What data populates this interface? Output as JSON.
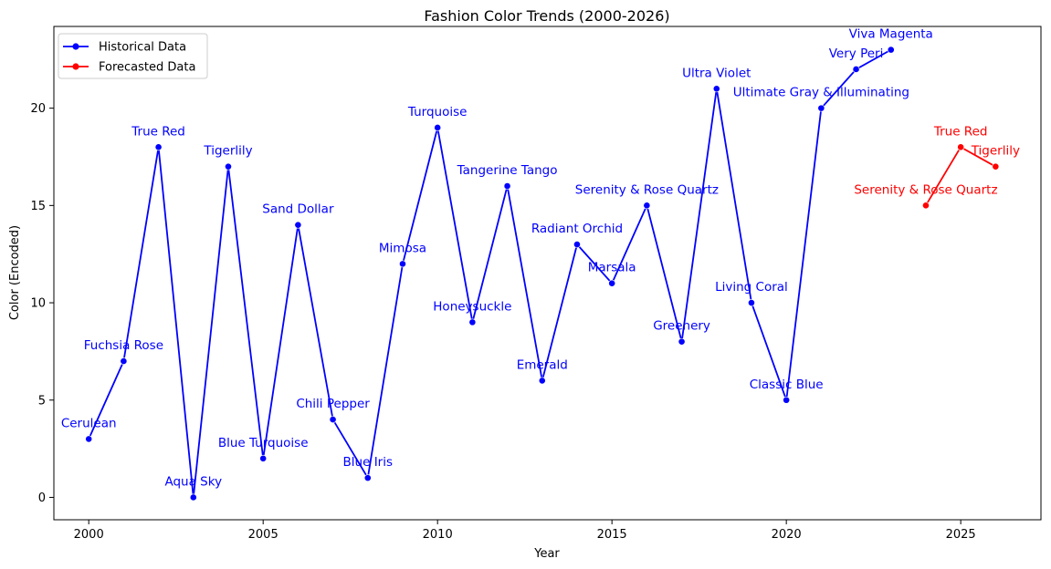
{
  "chart_data": {
    "type": "line",
    "title": "Fashion Color Trends (2000-2026)",
    "xlabel": "Year",
    "ylabel": "Color (Encoded)",
    "xlim": [
      1999,
      2027.3
    ],
    "ylim": [
      -1.15,
      24.2
    ],
    "xticks": [
      2000,
      2005,
      2010,
      2015,
      2020,
      2025
    ],
    "yticks": [
      0,
      5,
      10,
      15,
      20
    ],
    "grid": false,
    "legend": "top-left",
    "series": [
      {
        "name": "Historical Data",
        "color": "#0000ff",
        "points": [
          {
            "x": 2000,
            "y": 3,
            "label": "Cerulean"
          },
          {
            "x": 2001,
            "y": 7,
            "label": "Fuchsia Rose"
          },
          {
            "x": 2002,
            "y": 18,
            "label": "True Red"
          },
          {
            "x": 2003,
            "y": 0,
            "label": "Aqua Sky"
          },
          {
            "x": 2004,
            "y": 17,
            "label": "Tigerlily"
          },
          {
            "x": 2005,
            "y": 2,
            "label": "Blue Turquoise"
          },
          {
            "x": 2006,
            "y": 14,
            "label": "Sand Dollar"
          },
          {
            "x": 2007,
            "y": 4,
            "label": "Chili Pepper"
          },
          {
            "x": 2008,
            "y": 1,
            "label": "Blue Iris"
          },
          {
            "x": 2009,
            "y": 12,
            "label": "Mimosa"
          },
          {
            "x": 2010,
            "y": 19,
            "label": "Turquoise"
          },
          {
            "x": 2011,
            "y": 9,
            "label": "Honeysuckle"
          },
          {
            "x": 2012,
            "y": 16,
            "label": "Tangerine Tango"
          },
          {
            "x": 2013,
            "y": 6,
            "label": "Emerald"
          },
          {
            "x": 2014,
            "y": 13,
            "label": "Radiant Orchid"
          },
          {
            "x": 2015,
            "y": 11,
            "label": "Marsala"
          },
          {
            "x": 2016,
            "y": 15,
            "label": "Serenity & Rose Quartz"
          },
          {
            "x": 2017,
            "y": 8,
            "label": "Greenery"
          },
          {
            "x": 2018,
            "y": 21,
            "label": "Ultra Violet"
          },
          {
            "x": 2019,
            "y": 10,
            "label": "Living Coral"
          },
          {
            "x": 2020,
            "y": 5,
            "label": "Classic Blue"
          },
          {
            "x": 2021,
            "y": 20,
            "label": "Ultimate Gray & Illuminating"
          },
          {
            "x": 2022,
            "y": 22,
            "label": "Very Peri"
          },
          {
            "x": 2023,
            "y": 23,
            "label": "Viva Magenta"
          }
        ]
      },
      {
        "name": "Forecasted Data",
        "color": "#ff0000",
        "points": [
          {
            "x": 2024,
            "y": 15,
            "label": "Serenity & Rose Quartz"
          },
          {
            "x": 2025,
            "y": 18,
            "label": "True Red"
          },
          {
            "x": 2026,
            "y": 17,
            "label": "Tigerlily"
          }
        ]
      }
    ]
  }
}
